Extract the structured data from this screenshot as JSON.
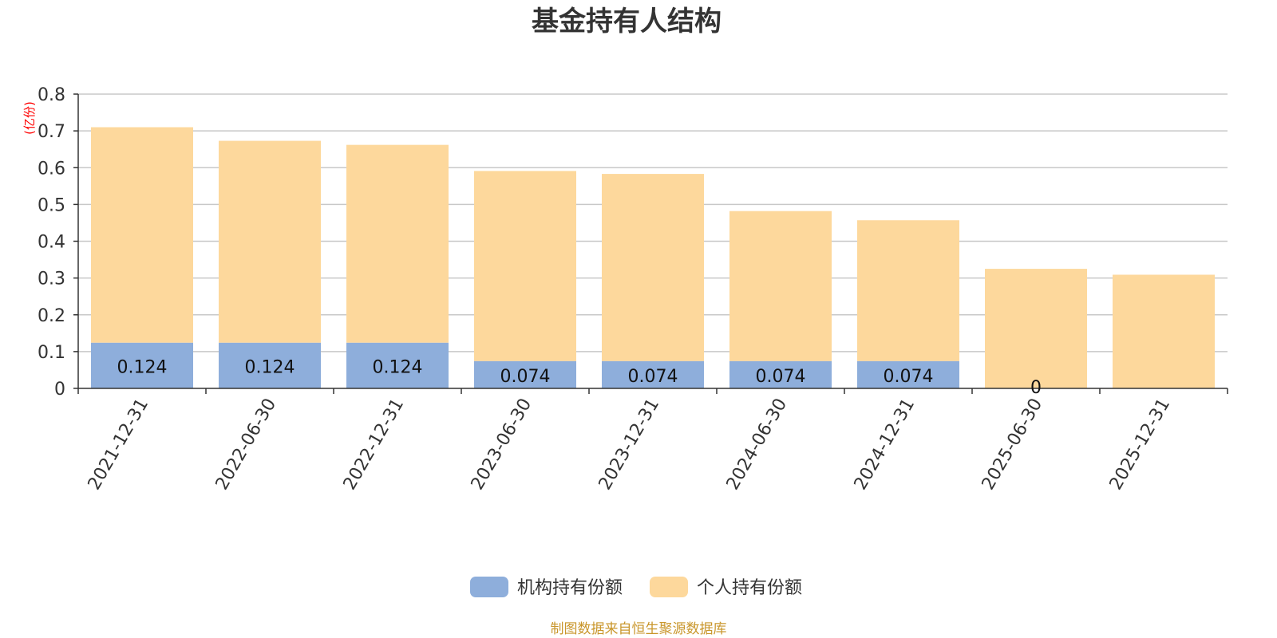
{
  "chart_data": {
    "type": "bar",
    "stacked": true,
    "title": "基金持有人结构",
    "unit_label": "(亿份)",
    "categories": [
      "2021-12-31",
      "2022-06-30",
      "2022-12-31",
      "2023-06-30",
      "2023-12-31",
      "2024-06-30",
      "2024-12-31",
      "2025-06-30",
      "2025-12-31"
    ],
    "series": [
      {
        "name": "机构持有份额",
        "color": "#8eaedb",
        "values": [
          0.124,
          0.124,
          0.124,
          0.074,
          0.074,
          0.074,
          0.074,
          0,
          0
        ],
        "data_labels": [
          "0.124",
          "0.124",
          "0.124",
          "0.074",
          "0.074",
          "0.074",
          "0.074",
          "0",
          ""
        ]
      },
      {
        "name": "个人持有份额",
        "color": "#fdd89c",
        "values": [
          0.586,
          0.549,
          0.538,
          0.517,
          0.509,
          0.408,
          0.383,
          0.325,
          0.309
        ]
      }
    ],
    "yticks": [
      "0",
      "0.1",
      "0.2",
      "0.3",
      "0.4",
      "0.5",
      "0.6",
      "0.7",
      "0.8"
    ],
    "ylim": [
      0,
      0.8
    ],
    "grid": true,
    "legend_position": "bottom-center",
    "source_note": "制图数据来自恒生聚源数据库"
  }
}
